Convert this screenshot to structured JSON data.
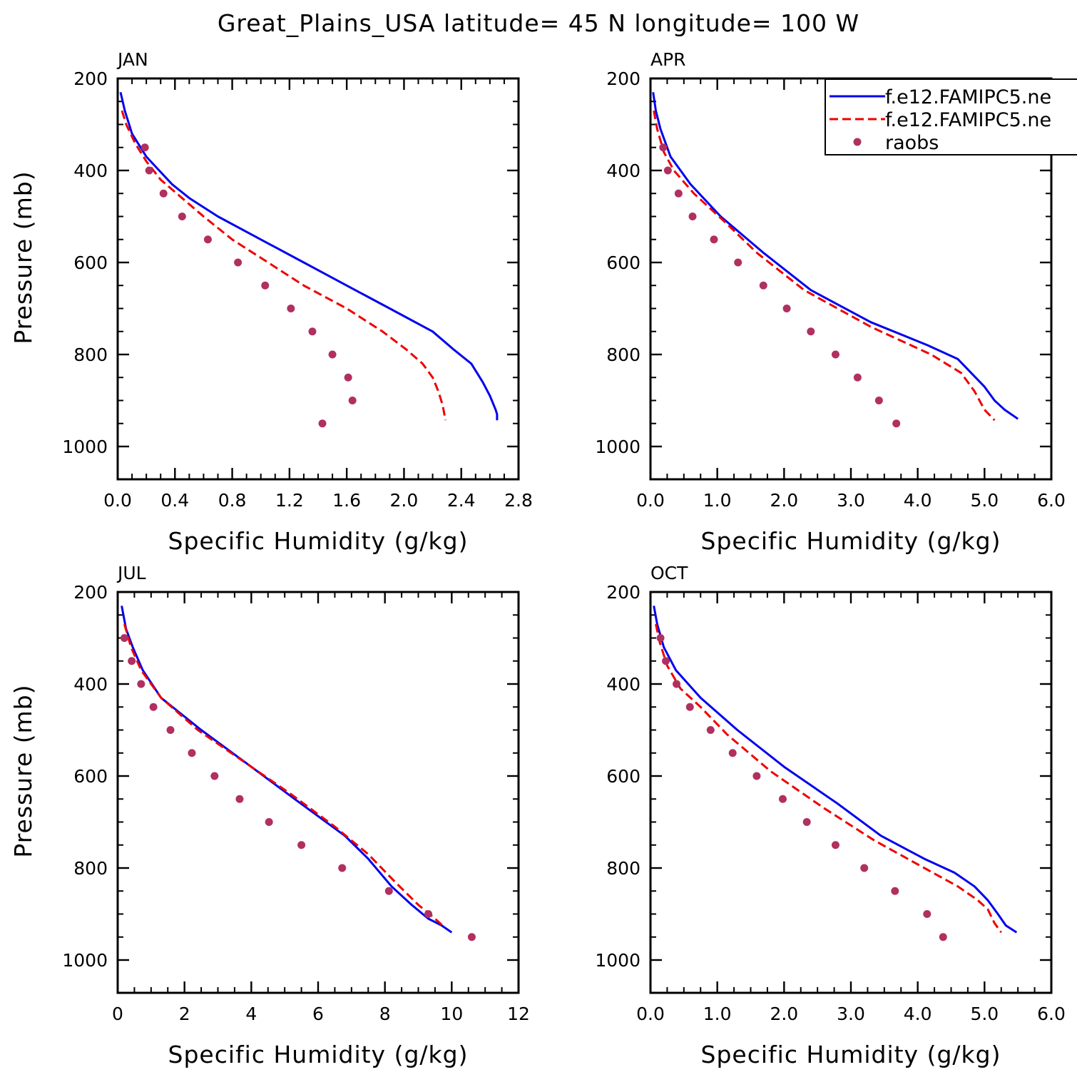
{
  "title": "Great_Plains_USA  latitude= 45 N longitude= 100 W",
  "colors": {
    "model1": "#0000ee",
    "model2": "#ee0000",
    "obs": "#b03060"
  },
  "legend": {
    "entries": [
      {
        "label": "f.e12.FAMIPC5.ne",
        "style": "solid",
        "color": "#0000ee"
      },
      {
        "label": "f.e12.FAMIPC5.ne",
        "style": "dashed",
        "color": "#ee0000"
      },
      {
        "label": "raobs",
        "style": "dots",
        "color": "#b03060"
      }
    ]
  },
  "chart_data": [
    {
      "type": "line",
      "panel": "JAN",
      "xlabel": "Specific Humidity (g/kg)",
      "ylabel": "Pressure (mb)",
      "xlim": [
        0,
        2.8
      ],
      "ylim": [
        1000,
        200
      ],
      "xticks": [
        0,
        0.4,
        0.8,
        1.2,
        1.6,
        2.0,
        2.4,
        2.8
      ],
      "xtick_labels": [
        "0.0",
        "0.4",
        "0.8",
        "1.2",
        "1.6",
        "2.0",
        "2.4",
        "2.8"
      ],
      "yticks": [
        200,
        400,
        600,
        800,
        1000
      ],
      "ytick_labels": [
        "200",
        "400",
        "600",
        "800",
        "1000"
      ],
      "series": [
        {
          "name": "f.e12.FAMIPC5.ne",
          "style": "solid",
          "x": [
            0.02,
            0.05,
            0.1,
            0.2,
            0.38,
            0.5,
            0.7,
            1.0,
            1.3,
            1.6,
            1.9,
            2.2,
            2.35,
            2.47,
            2.55,
            2.6,
            2.64,
            2.65,
            2.65
          ],
          "y": [
            230,
            270,
            320,
            370,
            430,
            460,
            500,
            550,
            600,
            650,
            700,
            750,
            790,
            820,
            860,
            890,
            920,
            930,
            943
          ]
        },
        {
          "name": "f.e12.FAMIPC5.ne",
          "style": "dashed",
          "x": [
            0.03,
            0.06,
            0.12,
            0.2,
            0.3,
            0.45,
            0.6,
            0.8,
            1.05,
            1.3,
            1.6,
            1.85,
            2.02,
            2.13,
            2.2,
            2.24,
            2.27,
            2.29
          ],
          "y": [
            270,
            300,
            340,
            380,
            420,
            460,
            500,
            550,
            600,
            650,
            700,
            750,
            790,
            820,
            850,
            880,
            910,
            943
          ]
        },
        {
          "name": "raobs",
          "style": "dots",
          "x": [
            0.19,
            0.22,
            0.32,
            0.45,
            0.63,
            0.84,
            1.03,
            1.21,
            1.36,
            1.5,
            1.61,
            1.64,
            1.43
          ],
          "y": [
            350,
            400,
            450,
            500,
            550,
            600,
            650,
            700,
            750,
            800,
            850,
            900,
            950
          ]
        }
      ]
    },
    {
      "type": "line",
      "panel": "APR",
      "xlabel": "Specific Humidity (g/kg)",
      "ylabel": "",
      "xlim": [
        0,
        6
      ],
      "ylim": [
        1000,
        200
      ],
      "xticks": [
        0,
        1,
        2,
        3,
        4,
        5,
        6
      ],
      "xtick_labels": [
        "0.0",
        "1.0",
        "2.0",
        "3.0",
        "4.0",
        "5.0",
        "6.0"
      ],
      "yticks": [
        200,
        400,
        600,
        800,
        1000
      ],
      "ytick_labels": [
        "200",
        "400",
        "600",
        "800",
        "1000"
      ],
      "series": [
        {
          "name": "f.e12.FAMIPC5.ne",
          "style": "solid",
          "x": [
            0.04,
            0.08,
            0.15,
            0.3,
            0.6,
            1.05,
            1.7,
            2.4,
            3.3,
            4.15,
            4.6,
            4.8,
            5.0,
            5.15,
            5.3,
            5.5
          ],
          "y": [
            230,
            270,
            310,
            370,
            430,
            500,
            580,
            660,
            730,
            780,
            810,
            840,
            870,
            900,
            920,
            940
          ]
        },
        {
          "name": "f.e12.FAMIPC5.ne",
          "style": "dashed",
          "x": [
            0.05,
            0.1,
            0.2,
            0.35,
            0.65,
            1.1,
            1.6,
            2.3,
            3.3,
            4.2,
            4.65,
            4.85,
            5.0,
            5.15
          ],
          "y": [
            270,
            310,
            360,
            400,
            450,
            510,
            580,
            660,
            740,
            800,
            840,
            880,
            920,
            943
          ]
        },
        {
          "name": "raobs",
          "style": "dots",
          "x": [
            0.19,
            0.26,
            0.42,
            0.63,
            0.95,
            1.31,
            1.69,
            2.04,
            2.4,
            2.77,
            3.1,
            3.42,
            3.68
          ],
          "y": [
            350,
            400,
            450,
            500,
            550,
            600,
            650,
            700,
            750,
            800,
            850,
            900,
            950
          ]
        }
      ]
    },
    {
      "type": "line",
      "panel": "JUL",
      "xlabel": "Specific Humidity (g/kg)",
      "ylabel": "Pressure (mb)",
      "xlim": [
        0,
        12
      ],
      "ylim": [
        1000,
        200
      ],
      "xticks": [
        0,
        2,
        4,
        6,
        8,
        10,
        12
      ],
      "xtick_labels": [
        "0",
        "2",
        "4",
        "6",
        "8",
        "10",
        "12"
      ],
      "yticks": [
        200,
        400,
        600,
        800,
        1000
      ],
      "ytick_labels": [
        "200",
        "400",
        "600",
        "800",
        "1000"
      ],
      "series": [
        {
          "name": "f.e12.FAMIPC5.ne",
          "style": "solid",
          "x": [
            0.12,
            0.25,
            0.45,
            0.75,
            1.3,
            2.5,
            4.0,
            5.3,
            6.8,
            7.5,
            8.2,
            8.8,
            9.3,
            9.7,
            10.0
          ],
          "y": [
            230,
            280,
            320,
            370,
            430,
            500,
            580,
            650,
            730,
            780,
            840,
            880,
            910,
            925,
            940
          ]
        },
        {
          "name": "f.e12.FAMIPC5.ne",
          "style": "dashed",
          "x": [
            0.2,
            0.4,
            0.7,
            1.3,
            2.4,
            3.8,
            5.2,
            6.5,
            7.5,
            8.3,
            9.0,
            9.5,
            9.8
          ],
          "y": [
            270,
            320,
            370,
            430,
            500,
            570,
            640,
            710,
            770,
            830,
            880,
            910,
            930
          ]
        },
        {
          "name": "raobs",
          "style": "dots",
          "x": [
            0.2,
            0.42,
            0.7,
            1.07,
            1.58,
            2.22,
            2.9,
            3.65,
            4.53,
            5.5,
            6.72,
            8.12,
            9.3,
            10.6
          ],
          "y": [
            300,
            350,
            400,
            450,
            500,
            550,
            600,
            650,
            700,
            750,
            800,
            850,
            900,
            950
          ]
        }
      ]
    },
    {
      "type": "line",
      "panel": "OCT",
      "xlabel": "Specific Humidity (g/kg)",
      "ylabel": "",
      "xlim": [
        0,
        6
      ],
      "ylim": [
        1000,
        200
      ],
      "xticks": [
        0,
        1,
        2,
        3,
        4,
        5,
        6
      ],
      "xtick_labels": [
        "0.0",
        "1.0",
        "2.0",
        "3.0",
        "4.0",
        "5.0",
        "6.0"
      ],
      "yticks": [
        200,
        400,
        600,
        800,
        1000
      ],
      "ytick_labels": [
        "200",
        "400",
        "600",
        "800",
        "1000"
      ],
      "series": [
        {
          "name": "f.e12.FAMIPC5.ne",
          "style": "solid",
          "x": [
            0.05,
            0.1,
            0.2,
            0.38,
            0.75,
            1.3,
            2.0,
            2.8,
            3.45,
            4.1,
            4.55,
            4.85,
            5.05,
            5.2,
            5.32,
            5.48
          ],
          "y": [
            230,
            270,
            320,
            370,
            430,
            500,
            580,
            660,
            730,
            780,
            810,
            840,
            870,
            900,
            925,
            940
          ]
        },
        {
          "name": "f.e12.FAMIPC5.ne",
          "style": "dashed",
          "x": [
            0.08,
            0.14,
            0.25,
            0.45,
            0.75,
            1.15,
            1.8,
            2.6,
            3.35,
            4.1,
            4.6,
            4.9,
            5.05,
            5.15,
            5.25
          ],
          "y": [
            270,
            310,
            360,
            410,
            450,
            510,
            590,
            670,
            740,
            800,
            840,
            870,
            890,
            920,
            940
          ]
        },
        {
          "name": "raobs",
          "style": "dots",
          "x": [
            0.15,
            0.23,
            0.39,
            0.59,
            0.9,
            1.23,
            1.59,
            1.98,
            2.34,
            2.77,
            3.2,
            3.66,
            4.14,
            4.38
          ],
          "y": [
            300,
            350,
            400,
            450,
            500,
            550,
            600,
            650,
            700,
            750,
            800,
            850,
            900,
            950
          ]
        }
      ]
    }
  ]
}
